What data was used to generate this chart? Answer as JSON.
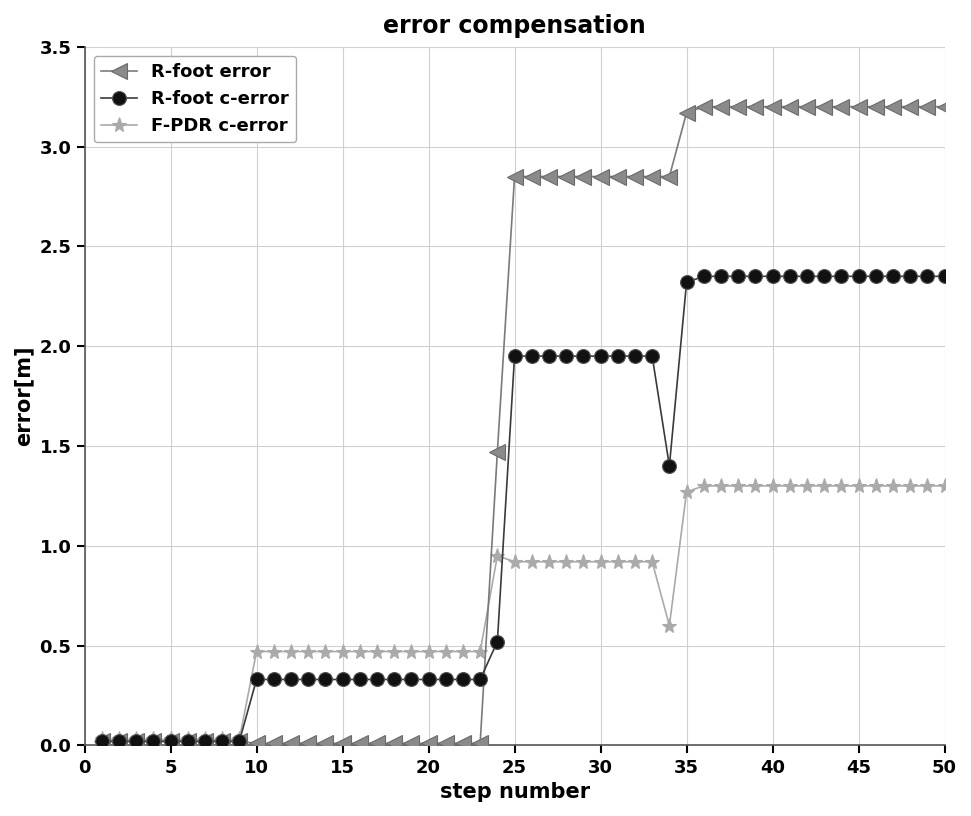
{
  "title": "error compensation",
  "xlabel": "step number",
  "ylabel": "error[m]",
  "xlim": [
    0,
    50
  ],
  "ylim": [
    0,
    3.5
  ],
  "xticks": [
    0,
    5,
    10,
    15,
    20,
    25,
    30,
    35,
    40,
    45,
    50
  ],
  "yticks": [
    0,
    0.5,
    1.0,
    1.5,
    2.0,
    2.5,
    3.0,
    3.5
  ],
  "series": {
    "rfoot_error": {
      "label": "R-foot error",
      "color": "#7a7a7a",
      "marker": "<",
      "markersize": 11,
      "linewidth": 1.2,
      "x": [
        1,
        2,
        3,
        4,
        5,
        6,
        7,
        8,
        9,
        10,
        11,
        12,
        13,
        14,
        15,
        16,
        17,
        18,
        19,
        20,
        21,
        22,
        23,
        24,
        25,
        26,
        27,
        28,
        29,
        30,
        31,
        32,
        33,
        34,
        35,
        36,
        37,
        38,
        39,
        40,
        41,
        42,
        43,
        44,
        45,
        46,
        47,
        48,
        49,
        50
      ],
      "y": [
        0.02,
        0.02,
        0.02,
        0.02,
        0.02,
        0.02,
        0.02,
        0.02,
        0.02,
        0.01,
        0.01,
        0.01,
        0.01,
        0.01,
        0.01,
        0.01,
        0.01,
        0.01,
        0.01,
        0.01,
        0.01,
        0.01,
        0.01,
        1.47,
        2.85,
        2.85,
        2.85,
        2.85,
        2.85,
        2.85,
        2.85,
        2.85,
        2.85,
        2.85,
        3.17,
        3.2,
        3.2,
        3.2,
        3.2,
        3.2,
        3.2,
        3.2,
        3.2,
        3.2,
        3.2,
        3.2,
        3.2,
        3.2,
        3.2,
        3.2
      ]
    },
    "rfoot_cerror": {
      "label": "R-foot c-error",
      "color": "#3a3a3a",
      "marker": "o",
      "markersize": 10,
      "linewidth": 1.2,
      "x": [
        1,
        2,
        3,
        4,
        5,
        6,
        7,
        8,
        9,
        10,
        11,
        12,
        13,
        14,
        15,
        16,
        17,
        18,
        19,
        20,
        21,
        22,
        23,
        24,
        25,
        26,
        27,
        28,
        29,
        30,
        31,
        32,
        33,
        34,
        35,
        36,
        37,
        38,
        39,
        40,
        41,
        42,
        43,
        44,
        45,
        46,
        47,
        48,
        49,
        50
      ],
      "y": [
        0.02,
        0.02,
        0.02,
        0.02,
        0.02,
        0.02,
        0.02,
        0.02,
        0.02,
        0.33,
        0.33,
        0.33,
        0.33,
        0.33,
        0.33,
        0.33,
        0.33,
        0.33,
        0.33,
        0.33,
        0.33,
        0.33,
        0.33,
        0.52,
        1.95,
        1.95,
        1.95,
        1.95,
        1.95,
        1.95,
        1.95,
        1.95,
        1.95,
        1.4,
        2.32,
        2.35,
        2.35,
        2.35,
        2.35,
        2.35,
        2.35,
        2.35,
        2.35,
        2.35,
        2.35,
        2.35,
        2.35,
        2.35,
        2.35,
        2.35
      ]
    },
    "fpdr_cerror": {
      "label": "F-PDR c-error",
      "color": "#aaaaaa",
      "marker": "*",
      "markersize": 11,
      "linewidth": 1.2,
      "x": [
        1,
        2,
        3,
        4,
        5,
        6,
        7,
        8,
        9,
        10,
        11,
        12,
        13,
        14,
        15,
        16,
        17,
        18,
        19,
        20,
        21,
        22,
        23,
        24,
        25,
        26,
        27,
        28,
        29,
        30,
        31,
        32,
        33,
        34,
        35,
        36,
        37,
        38,
        39,
        40,
        41,
        42,
        43,
        44,
        45,
        46,
        47,
        48,
        49,
        50
      ],
      "y": [
        0.03,
        0.03,
        0.03,
        0.03,
        0.03,
        0.03,
        0.03,
        0.03,
        0.03,
        0.47,
        0.47,
        0.47,
        0.47,
        0.47,
        0.47,
        0.47,
        0.47,
        0.47,
        0.47,
        0.47,
        0.47,
        0.47,
        0.47,
        0.95,
        0.92,
        0.92,
        0.92,
        0.92,
        0.92,
        0.92,
        0.92,
        0.92,
        0.92,
        0.6,
        1.27,
        1.3,
        1.3,
        1.3,
        1.3,
        1.3,
        1.3,
        1.3,
        1.3,
        1.3,
        1.3,
        1.3,
        1.3,
        1.3,
        1.3,
        1.3
      ]
    }
  },
  "background_color": "#ffffff",
  "grid_color": "#d0d0d0",
  "title_fontsize": 17,
  "axis_label_fontsize": 15,
  "tick_fontsize": 13,
  "legend_fontsize": 13
}
